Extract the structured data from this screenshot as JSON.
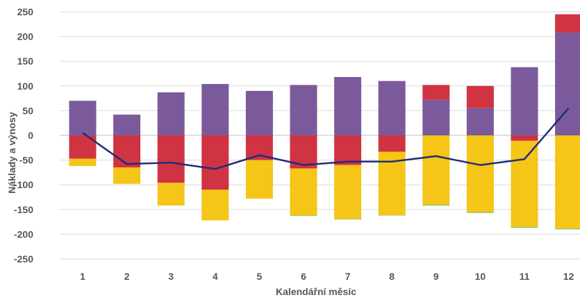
{
  "chart_data": {
    "type": "bar",
    "stacked": true,
    "title": "",
    "xlabel": "Kalendářní měsíc",
    "ylabel": "Náklady a výnosy",
    "ylim": [
      -250,
      250
    ],
    "y_ticks": [
      250,
      200,
      150,
      100,
      50,
      0,
      -50,
      -100,
      -150,
      -200,
      -250
    ],
    "grid": true,
    "legend": "none",
    "categories": [
      "1",
      "2",
      "3",
      "4",
      "5",
      "6",
      "7",
      "8",
      "9",
      "10",
      "11",
      "12"
    ],
    "series": [
      {
        "color": "#7B5A9B",
        "values": [
          70,
          42,
          87,
          104,
          90,
          102,
          118,
          110,
          72,
          55,
          138,
          208
        ]
      },
      {
        "color": "#D03341",
        "values": [
          -47,
          -65,
          -96,
          -110,
          -50,
          -67,
          -60,
          -33,
          30,
          45,
          -11,
          37
        ]
      },
      {
        "color": "#F5C518",
        "values": [
          -15,
          -33,
          -46,
          -62,
          -78,
          -95,
          -109,
          -128,
          -140,
          -155,
          -174,
          -188
        ]
      },
      {
        "color": "#8DC63F",
        "values": [
          0,
          0,
          0,
          0,
          0,
          -1,
          -1,
          -1,
          -2,
          -2,
          -2,
          -2
        ]
      },
      {
        "type": "line",
        "color": "#1F2D7A",
        "values": [
          5,
          -58,
          -55,
          -68,
          -40,
          -60,
          -53,
          -53,
          -42,
          -60,
          -48,
          55
        ]
      }
    ],
    "colors": {
      "grid": "#d9d9d9",
      "zero_line": "#bfbfbf",
      "text": "#555555"
    }
  }
}
